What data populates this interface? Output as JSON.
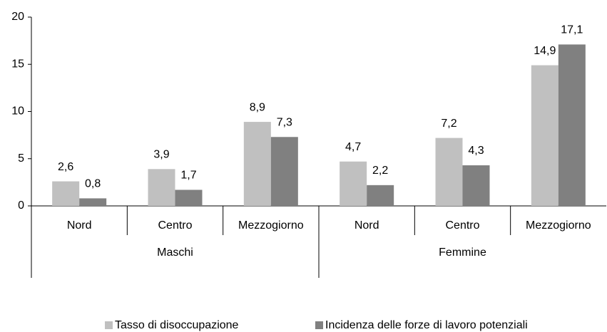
{
  "chart_data": {
    "type": "bar",
    "categories": [
      "Nord",
      "Centro",
      "Mezzogiorno",
      "Nord",
      "Centro",
      "Mezzogiorno"
    ],
    "groups": [
      "Maschi",
      "Femmine"
    ],
    "series": [
      {
        "name": "Tasso di disoccupazione",
        "color": "#c0c0c0",
        "values": [
          2.6,
          3.9,
          8.9,
          4.7,
          7.2,
          14.9
        ],
        "value_labels": [
          "2,6",
          "3,9",
          "8,9",
          "4,7",
          "7,2",
          "14,9"
        ]
      },
      {
        "name": "Incidenza delle forze di lavoro potenziali",
        "color": "#808080",
        "values": [
          0.8,
          1.7,
          7.3,
          2.2,
          4.3,
          17.1
        ],
        "value_labels": [
          "0,8",
          "1,7",
          "7,3",
          "2,2",
          "4,3",
          "17,1"
        ]
      }
    ],
    "ylim": [
      0,
      20
    ],
    "yticks": [
      0,
      5,
      10,
      15,
      20
    ],
    "legend": "bottom"
  }
}
